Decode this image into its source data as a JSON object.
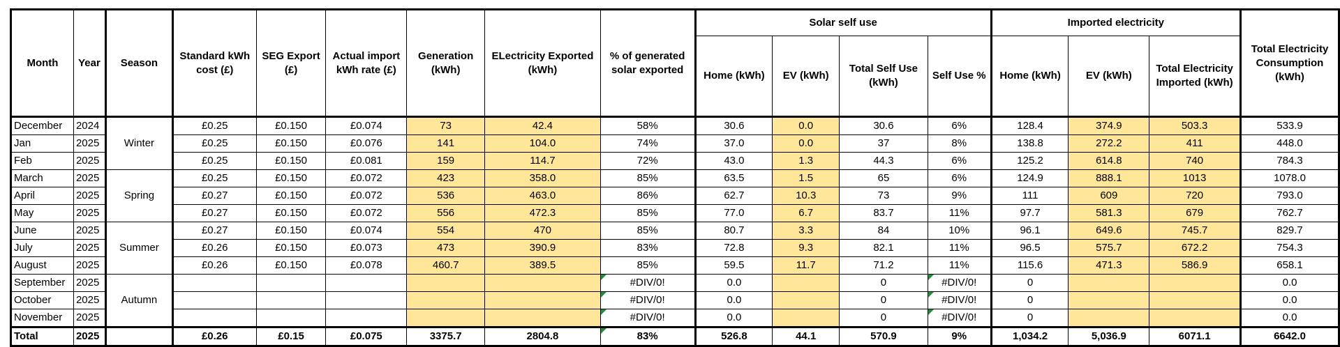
{
  "headers": {
    "month": "Month",
    "year": "Year",
    "season": "Season",
    "std_cost": "Standard kWh cost (£)",
    "seg_export": "SEG Export (£)",
    "actual_import": "Actual import kWh rate (£)",
    "generation": "Generation (kWh)",
    "exported": "ELectricity Exported (kWh)",
    "pct_exported": "% of generated solar exported",
    "solar_group": "Solar self use",
    "self_home": "Home (kWh)",
    "self_ev": "EV (kWh)",
    "self_total": "Total Self Use (kWh)",
    "self_pct": "Self Use %",
    "import_group": "Imported electricity",
    "imp_home": "Home (kWh)",
    "imp_ev": "EV (kWh)",
    "imp_total": "Total Electricity Imported (kWh)",
    "total_consumption": "Total Electricity Consumption (kWh)"
  },
  "seasons": [
    "Winter",
    "Spring",
    "Summer",
    "Autumn"
  ],
  "rows": [
    {
      "month": "December",
      "year": "2024",
      "std": "£0.25",
      "seg": "£0.150",
      "act": "£0.074",
      "gen": "73",
      "exp": "42.4",
      "pct": "58%",
      "home": "30.6",
      "ev": "0.0",
      "selftot": "30.6",
      "selfpct": "6%",
      "ihome": "128.4",
      "iev": "374.9",
      "itot": "503.3",
      "cons": "533.9"
    },
    {
      "month": "Jan",
      "year": "2025",
      "std": "£0.25",
      "seg": "£0.150",
      "act": "£0.076",
      "gen": "141",
      "exp": "104.0",
      "pct": "74%",
      "home": "37.0",
      "ev": "0.0",
      "selftot": "37",
      "selfpct": "8%",
      "ihome": "138.8",
      "iev": "272.2",
      "itot": "411",
      "cons": "448.0"
    },
    {
      "month": "Feb",
      "year": "2025",
      "std": "£0.25",
      "seg": "£0.150",
      "act": "£0.081",
      "gen": "159",
      "exp": "114.7",
      "pct": "72%",
      "home": "43.0",
      "ev": "1.3",
      "selftot": "44.3",
      "selfpct": "6%",
      "ihome": "125.2",
      "iev": "614.8",
      "itot": "740",
      "cons": "784.3"
    },
    {
      "month": "March",
      "year": "2025",
      "std": "£0.25",
      "seg": "£0.150",
      "act": "£0.072",
      "gen": "423",
      "exp": "358.0",
      "pct": "85%",
      "home": "63.5",
      "ev": "1.5",
      "selftot": "65",
      "selfpct": "6%",
      "ihome": "124.9",
      "iev": "888.1",
      "itot": "1013",
      "cons": "1078.0"
    },
    {
      "month": "April",
      "year": "2025",
      "std": "£0.27",
      "seg": "£0.150",
      "act": "£0.072",
      "gen": "536",
      "exp": "463.0",
      "pct": "86%",
      "home": "62.7",
      "ev": "10.3",
      "selftot": "73",
      "selfpct": "9%",
      "ihome": "111",
      "iev": "609",
      "itot": "720",
      "cons": "793.0"
    },
    {
      "month": "May",
      "year": "2025",
      "std": "£0.27",
      "seg": "£0.150",
      "act": "£0.072",
      "gen": "556",
      "exp": "472.3",
      "pct": "85%",
      "home": "77.0",
      "ev": "6.7",
      "selftot": "83.7",
      "selfpct": "11%",
      "ihome": "97.7",
      "iev": "581.3",
      "itot": "679",
      "cons": "762.7"
    },
    {
      "month": "June",
      "year": "2025",
      "std": "£0.27",
      "seg": "£0.150",
      "act": "£0.074",
      "gen": "554",
      "exp": "470",
      "pct": "85%",
      "home": "80.7",
      "ev": "3.3",
      "selftot": "84",
      "selfpct": "10%",
      "ihome": "96.1",
      "iev": "649.6",
      "itot": "745.7",
      "cons": "829.7"
    },
    {
      "month": "July",
      "year": "2025",
      "std": "£0.26",
      "seg": "£0.150",
      "act": "£0.073",
      "gen": "473",
      "exp": "390.9",
      "pct": "83%",
      "home": "72.8",
      "ev": "9.3",
      "selftot": "82.1",
      "selfpct": "11%",
      "ihome": "96.5",
      "iev": "575.7",
      "itot": "672.2",
      "cons": "754.3"
    },
    {
      "month": "August",
      "year": "2025",
      "std": "£0.26",
      "seg": "£0.150",
      "act": "£0.078",
      "gen": "460.7",
      "exp": "389.5",
      "pct": "85%",
      "home": "59.5",
      "ev": "11.7",
      "selftot": "71.2",
      "selfpct": "11%",
      "ihome": "115.6",
      "iev": "471.3",
      "itot": "586.9",
      "cons": "658.1"
    },
    {
      "month": "September",
      "year": "2025",
      "std": "",
      "seg": "",
      "act": "",
      "gen": "",
      "exp": "",
      "pct": "#DIV/0!",
      "home": "0.0",
      "ev": "",
      "selftot": "0",
      "selfpct": "#DIV/0!",
      "ihome": "0",
      "iev": "",
      "itot": "",
      "cons": "0.0"
    },
    {
      "month": "October",
      "year": "2025",
      "std": "",
      "seg": "",
      "act": "",
      "gen": "",
      "exp": "",
      "pct": "#DIV/0!",
      "home": "0.0",
      "ev": "",
      "selftot": "0",
      "selfpct": "#DIV/0!",
      "ihome": "0",
      "iev": "",
      "itot": "",
      "cons": "0.0"
    },
    {
      "month": "November",
      "year": "2025",
      "std": "",
      "seg": "",
      "act": "",
      "gen": "",
      "exp": "",
      "pct": "#DIV/0!",
      "home": "0.0",
      "ev": "",
      "selftot": "0",
      "selfpct": "#DIV/0!",
      "ihome": "0",
      "iev": "",
      "itot": "",
      "cons": "0.0"
    }
  ],
  "total": {
    "month": "Total",
    "year": "2025",
    "std": "£0.26",
    "seg": "£0.15",
    "act": "£0.075",
    "gen": "3375.7",
    "exp": "2804.8",
    "pct": "83%",
    "home": "526.8",
    "ev": "44.1",
    "selftot": "570.9",
    "selfpct": "9%",
    "ihome": "1,034.2",
    "iev": "5,036.9",
    "itot": "6071.1",
    "cons": "6642.0"
  },
  "colors": {
    "highlight": "#ffe699",
    "error_flag": "#1e8f3a"
  }
}
